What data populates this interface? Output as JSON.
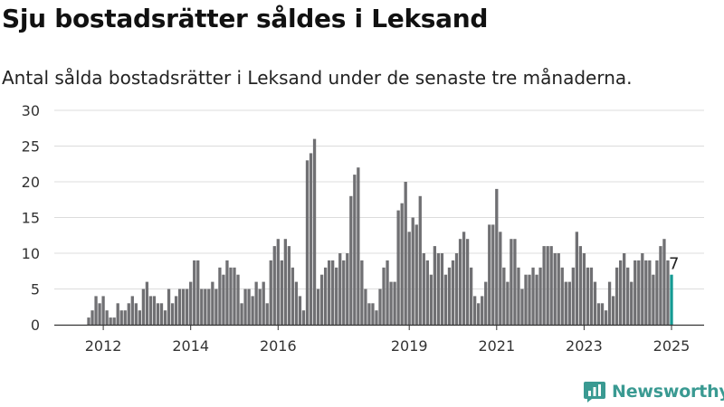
{
  "header": {
    "title": "Sju bostadsrätter såldes i Leksand",
    "subtitle": "Antal sålda bostadsrätter i Leksand under de senaste tre månaderna."
  },
  "brand": {
    "name": "Newsworthy"
  },
  "colors": {
    "bar": "#707073",
    "highlight": "#159a93",
    "grid": "#dcdcdc",
    "brand": "#3a9a92"
  },
  "chart_data": {
    "type": "bar",
    "title": "Sju bostadsrätter såldes i Leksand",
    "subtitle": "Antal sålda bostadsrätter i Leksand under de senaste tre månaderna.",
    "xlabel": "",
    "ylabel": "",
    "ylim": [
      0,
      30
    ],
    "yticks": [
      0,
      5,
      10,
      15,
      20,
      25,
      30
    ],
    "xticks": [
      {
        "label": "2012",
        "month_index": 4
      },
      {
        "label": "2014",
        "month_index": 28
      },
      {
        "label": "2016",
        "month_index": 52
      },
      {
        "label": "2019",
        "month_index": 88
      },
      {
        "label": "2021",
        "month_index": 112
      },
      {
        "label": "2023",
        "month_index": 136
      },
      {
        "label": "2025",
        "month_index": 160
      }
    ],
    "grid": true,
    "legend": "none",
    "highlight_label": "7",
    "series": [
      {
        "values": [
          1,
          2,
          4,
          3,
          4,
          2,
          1,
          1,
          3,
          2,
          2,
          3,
          4,
          3,
          2,
          5,
          6,
          4,
          4,
          3,
          3,
          2,
          5,
          3,
          4,
          5,
          5,
          5,
          6,
          9,
          9,
          5,
          5,
          5,
          6,
          5,
          8,
          7,
          9,
          8,
          8,
          7,
          3,
          5,
          5,
          4,
          6,
          5,
          6,
          3,
          9,
          11,
          12,
          9,
          12,
          11,
          8,
          6,
          4,
          2,
          23,
          24,
          26,
          5,
          7,
          8,
          9,
          9,
          8,
          10,
          9,
          10,
          18,
          21,
          22,
          9,
          5,
          3,
          3,
          2,
          5,
          8,
          9,
          6,
          6,
          16,
          17,
          20,
          13,
          15,
          14,
          18,
          10,
          9,
          7,
          11,
          10,
          10,
          7,
          8,
          9,
          10,
          12,
          13,
          12,
          8,
          4,
          3,
          4,
          6,
          14,
          14,
          19,
          13,
          8,
          6,
          12,
          12,
          8,
          5,
          7,
          7,
          8,
          7,
          8,
          11,
          11,
          11,
          10,
          10,
          8,
          6,
          6,
          8,
          13,
          11,
          10,
          8,
          8,
          6,
          3,
          3,
          2,
          6,
          4,
          8,
          9,
          10,
          8,
          6,
          9,
          9,
          10,
          9,
          9,
          7,
          9,
          11,
          12,
          9,
          7
        ]
      }
    ]
  }
}
